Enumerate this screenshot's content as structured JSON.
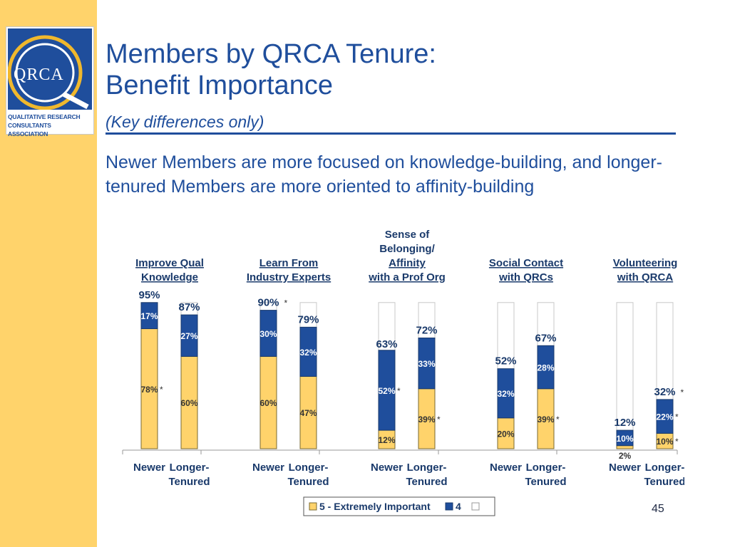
{
  "logo": {
    "text": "QRCA",
    "caption_line1": "QUALITATIVE RESEARCH",
    "caption_line2": "CONSULTANTS ASSOCIATION"
  },
  "title_line1": "Members by QRCA Tenure:",
  "title_line2": "Benefit Importance",
  "subtitle": "(Key differences only)",
  "headline": "Newer Members are more focused on knowledge-building, and longer-tenured Members are more oriented to affinity-building",
  "page_number": "45",
  "colors": {
    "yellow": "#ffd36b",
    "blue": "#1f4e9c",
    "white": "#ffffff",
    "text": "#1f2a44",
    "navy": "#1a3a6b"
  },
  "chart_data": {
    "type": "bar",
    "stacked": true,
    "ylim": [
      0,
      100
    ],
    "bar_labels": [
      "Newer",
      "Longer-Tenured"
    ],
    "legend": [
      "5 - Extremely Important",
      "4",
      ""
    ],
    "groups": [
      {
        "title": [
          "Improve Qual",
          "Knowledge"
        ],
        "bars": [
          {
            "label": [
              "Newer"
            ],
            "s5": 78,
            "s5_label": "78%",
            "s5_star": true,
            "s4": 17,
            "s4_label": "17%",
            "s4_star": false,
            "total": 95,
            "total_label": "95%",
            "total_star": false
          },
          {
            "label": [
              "Longer-",
              "Tenured"
            ],
            "s5": 60,
            "s5_label": "60%",
            "s5_star": false,
            "s4": 27,
            "s4_label": "27%",
            "s4_star": false,
            "total": 87,
            "total_label": "87%",
            "total_star": false
          }
        ]
      },
      {
        "title": [
          "Learn From",
          "Industry Experts"
        ],
        "bars": [
          {
            "label": [
              "Newer"
            ],
            "s5": 60,
            "s5_label": "60%",
            "s5_star": false,
            "s4": 30,
            "s4_label": "30%",
            "s4_star": false,
            "total": 90,
            "total_label": "90%",
            "total_star": true
          },
          {
            "label": [
              "Longer-",
              "Tenured"
            ],
            "s5": 47,
            "s5_label": "47%",
            "s5_star": false,
            "s4": 32,
            "s4_label": "32%",
            "s4_star": false,
            "total": 79,
            "total_label": "79%",
            "total_star": false
          }
        ]
      },
      {
        "title": [
          "Sense of",
          "Belonging/",
          "Affinity",
          "with a Prof Org"
        ],
        "bars": [
          {
            "label": [
              "Newer"
            ],
            "s5": 12,
            "s5_label": "12%",
            "s5_star": false,
            "s4": 52,
            "s4_label": "52%",
            "s4_star": true,
            "total": 63,
            "total_label": "63%",
            "total_star": false
          },
          {
            "label": [
              "Longer-",
              "Tenured"
            ],
            "s5": 39,
            "s5_label": "39%",
            "s5_star": true,
            "s4": 33,
            "s4_label": "33%",
            "s4_star": false,
            "total": 72,
            "total_label": "72%",
            "total_star": false
          }
        ]
      },
      {
        "title": [
          "Social Contact",
          "with QRCs"
        ],
        "bars": [
          {
            "label": [
              "Newer"
            ],
            "s5": 20,
            "s5_label": "20%",
            "s5_star": false,
            "s4": 32,
            "s4_label": "32%",
            "s4_star": false,
            "total": 52,
            "total_label": "52%",
            "total_star": false
          },
          {
            "label": [
              "Longer-",
              "Tenured"
            ],
            "s5": 39,
            "s5_label": "39%",
            "s5_star": true,
            "s4": 28,
            "s4_label": "28%",
            "s4_star": false,
            "total": 67,
            "total_label": "67%",
            "total_star": false
          }
        ]
      },
      {
        "title": [
          "Volunteering",
          "with QRCA"
        ],
        "bars": [
          {
            "label": [
              "Newer"
            ],
            "s5": 2,
            "s5_label": "2%",
            "s5_star": false,
            "s4": 10,
            "s4_label": "10%",
            "s4_star": false,
            "total": 12,
            "total_label": "12%",
            "total_star": false
          },
          {
            "label": [
              "Longer-",
              "Tenured"
            ],
            "s5": 10,
            "s5_label": "10%",
            "s5_star": true,
            "s4": 22,
            "s4_label": "22%",
            "s4_star": true,
            "total": 32,
            "total_label": "32%",
            "total_star": true
          }
        ]
      }
    ]
  }
}
